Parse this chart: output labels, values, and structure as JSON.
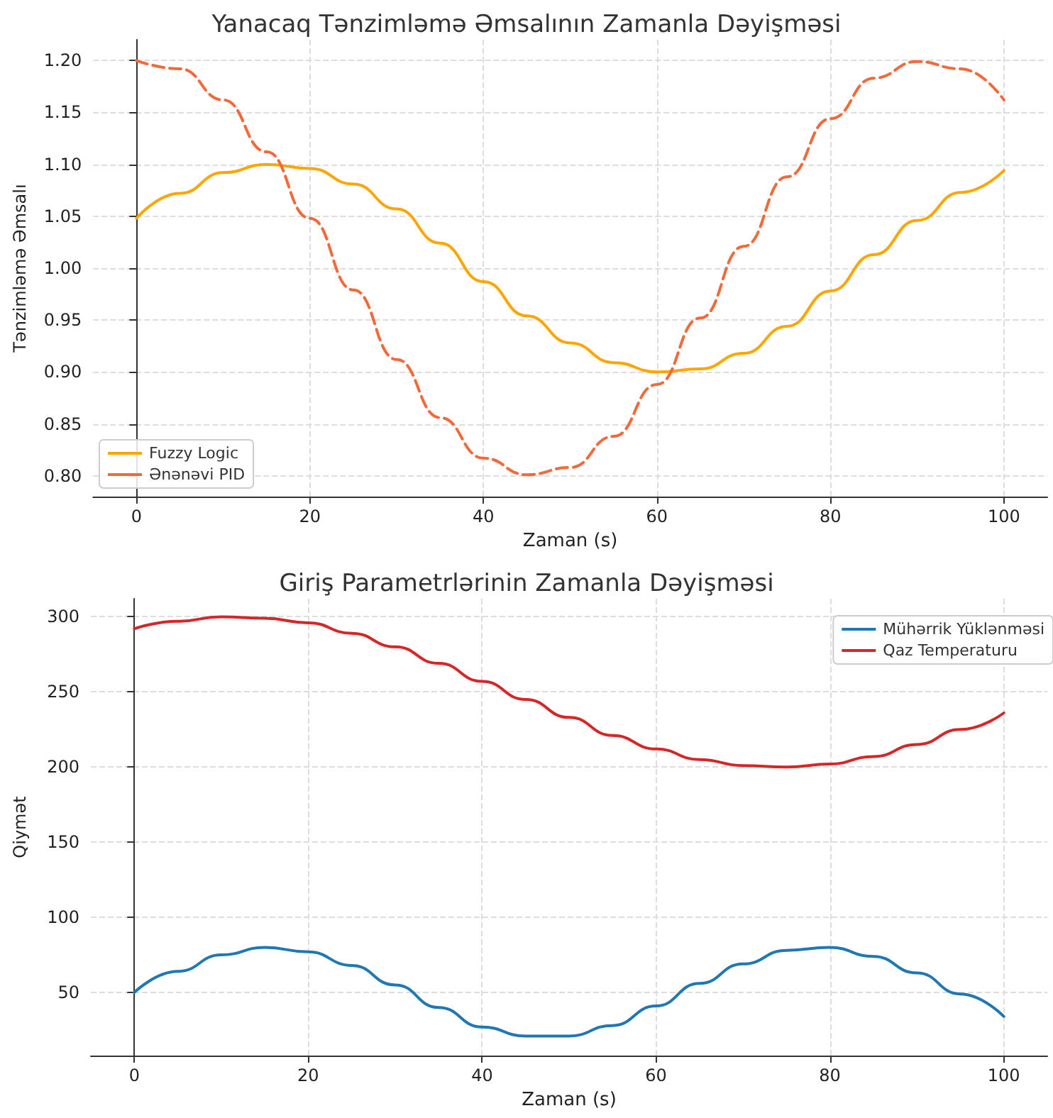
{
  "chart_data": [
    {
      "type": "line",
      "title": "Yanacaq Tənzimləmə Əmsalının Zamanla Dəyişməsi",
      "xlabel": "Zaman (s)",
      "ylabel": "Tənzimləmə Əmsalı",
      "x": [
        0,
        5,
        10,
        15,
        20,
        25,
        30,
        35,
        40,
        45,
        50,
        55,
        60,
        65,
        70,
        75,
        80,
        85,
        90,
        95,
        100
      ],
      "series": [
        {
          "name": "Fuzzy Logic",
          "color": "#ffa500",
          "line_style": "solid",
          "values": [
            1.048,
            1.072,
            1.092,
            1.1,
            1.096,
            1.081,
            1.057,
            1.024,
            0.987,
            0.954,
            0.928,
            0.909,
            0.9,
            0.903,
            0.918,
            0.944,
            0.978,
            1.013,
            1.046,
            1.073,
            1.094
          ]
        },
        {
          "name": "Ənənəvi PID",
          "color": "#f4693a",
          "line_style": "dashed",
          "values": [
            1.2,
            1.192,
            1.162,
            1.112,
            1.048,
            0.979,
            0.912,
            0.856,
            0.817,
            0.801,
            0.808,
            0.838,
            0.888,
            0.952,
            1.021,
            1.088,
            1.144,
            1.183,
            1.199,
            1.192,
            1.162
          ]
        }
      ],
      "xlim": [
        -5,
        105
      ],
      "xticks": [
        0,
        20,
        40,
        60,
        80,
        100
      ],
      "ylim": [
        0.78,
        1.22
      ],
      "yticks": [
        {
          "value": 0.8,
          "label": "0.80"
        },
        {
          "value": 0.85,
          "label": "0.85"
        },
        {
          "value": 0.9,
          "label": "0.90"
        },
        {
          "value": 0.95,
          "label": "0.95"
        },
        {
          "value": 1.0,
          "label": "1.00"
        },
        {
          "value": 1.05,
          "label": "1.05"
        },
        {
          "value": 1.1,
          "label": "1.10"
        },
        {
          "value": 1.15,
          "label": "1.15"
        },
        {
          "value": 1.2,
          "label": "1.20"
        }
      ],
      "grid": true,
      "legend": "bottom left",
      "marker": "none"
    },
    {
      "type": "line",
      "title": "Giriş Parametrlərinin Zamanla Dəyişməsi",
      "xlabel": "Zaman (s)",
      "ylabel": "Qiymət",
      "x": [
        0,
        5,
        10,
        15,
        20,
        25,
        30,
        35,
        40,
        45,
        50,
        55,
        60,
        65,
        70,
        75,
        80,
        85,
        90,
        95,
        100
      ],
      "series": [
        {
          "name": "Mühərrik Yüklənməsi",
          "color": "#1f77b4",
          "values": [
            50,
            64,
            75,
            80,
            77,
            68,
            55,
            40,
            27,
            21,
            21,
            28,
            41,
            56,
            69,
            78,
            80,
            74,
            63,
            49,
            34
          ]
        },
        {
          "name": "Qaz Temperaturu",
          "color": "#d62728",
          "values": [
            292,
            297,
            300,
            299,
            296,
            289,
            280,
            269,
            257,
            245,
            233,
            221,
            212,
            205,
            201,
            200,
            202,
            207,
            215,
            225,
            236
          ]
        }
      ],
      "xlim": [
        -5,
        105
      ],
      "xticks": [
        0,
        20,
        40,
        60,
        80,
        100
      ],
      "ylim": [
        8,
        312
      ],
      "yticks": [
        50,
        100,
        150,
        200,
        250,
        300
      ],
      "grid": true,
      "legend": "top right",
      "marker": "none",
      "line_style": "solid"
    }
  ]
}
